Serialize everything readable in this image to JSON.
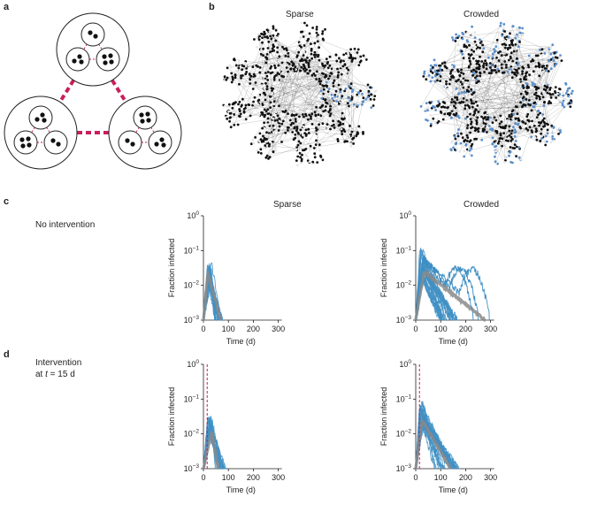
{
  "panels": {
    "a": "a",
    "b": "b",
    "c": "c",
    "d": "d"
  },
  "network_titles": [
    "Sparse",
    "Crowded"
  ],
  "colors": {
    "node_dark": "#111111",
    "node_light": "#e6e6e6",
    "node_blue": "#5b8fc9",
    "edge": "#444444",
    "dashed_red": "#c8205c",
    "trace_blue": "#3f8fc4",
    "mean_grey": "#8a8a8a"
  },
  "row_c": {
    "label": "No intervention",
    "titles": [
      "Sparse",
      "Crowded"
    ]
  },
  "row_d": {
    "label_line1": "Intervention",
    "label_line2_prefix": "at ",
    "label_line2_t": "t",
    "label_line2_suffix": " = 15 d"
  },
  "axes": {
    "ylabel": "Fraction infected",
    "xlabel": "Time (d)",
    "yticks": [
      {
        "base": "10",
        "exp": "0"
      },
      {
        "base": "10",
        "exp": "−1"
      },
      {
        "base": "10",
        "exp": "−2"
      },
      {
        "base": "10",
        "exp": "−3"
      }
    ],
    "xticks": [
      "0",
      "100",
      "200",
      "300"
    ]
  },
  "chart_data": [
    {
      "type": "line",
      "title": "Sparse",
      "row": "No intervention",
      "xlabel": "Time (d)",
      "ylabel": "Fraction infected",
      "xlim": [
        0,
        320
      ],
      "ylim": [
        0.001,
        1
      ],
      "yscale": "log",
      "intervention_day": null,
      "peak_range": [
        0.012,
        0.05
      ],
      "mean_peak": 0.022,
      "duration_range": [
        45,
        78
      ],
      "mean_end": 70,
      "late_runs": []
    },
    {
      "type": "line",
      "title": "Crowded",
      "row": "No intervention",
      "xlabel": "Time (d)",
      "ylabel": "Fraction infected",
      "xlim": [
        0,
        320
      ],
      "ylim": [
        0.001,
        1
      ],
      "yscale": "log",
      "intervention_day": null,
      "peak_range": [
        0.015,
        0.12
      ],
      "mean_peak": 0.025,
      "duration_range": [
        90,
        175
      ],
      "mean_end": 280,
      "late_runs": [
        230,
        250,
        295
      ]
    },
    {
      "type": "line",
      "title": "",
      "row": "Intervention at t = 15 d",
      "xlabel": "Time (d)",
      "ylabel": "Fraction infected",
      "xlim": [
        0,
        320
      ],
      "ylim": [
        0.001,
        1
      ],
      "yscale": "log",
      "intervention_day": 15,
      "peak_range": [
        0.01,
        0.045
      ],
      "mean_peak": 0.012,
      "duration_range": [
        45,
        95
      ],
      "mean_end": 60,
      "late_runs": []
    },
    {
      "type": "line",
      "title": "",
      "row": "Intervention at t = 15 d",
      "xlabel": "Time (d)",
      "ylabel": "Fraction infected",
      "xlim": [
        0,
        320
      ],
      "ylim": [
        0.001,
        1
      ],
      "yscale": "log",
      "intervention_day": 15,
      "peak_range": [
        0.015,
        0.09
      ],
      "mean_peak": 0.025,
      "duration_range": [
        70,
        175
      ],
      "mean_end": 140,
      "late_runs": []
    }
  ]
}
